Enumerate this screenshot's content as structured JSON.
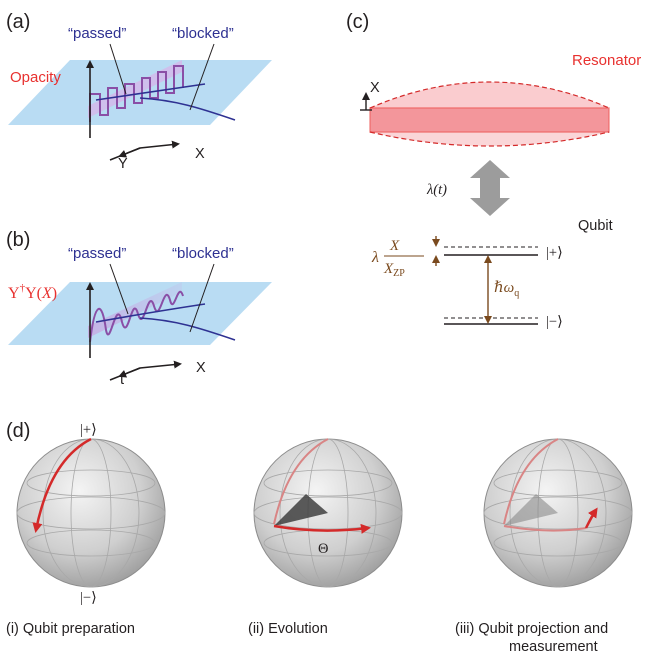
{
  "panel_a": {
    "label": "(a)",
    "passed": "“passed”",
    "blocked": "“blocked”",
    "opacity": "Opacity",
    "axis_y": "Y",
    "axis_x": "X"
  },
  "panel_b": {
    "label": "(b)",
    "passed": "“passed”",
    "blocked": "“blocked”",
    "ups_main": "Υ",
    "ups_dagger": "†",
    "ups_rest": "Υ(",
    "ups_x": "X",
    "ups_close": ")",
    "axis_t": "t",
    "axis_x": "X"
  },
  "panel_c": {
    "label": "(c)",
    "resonator": "Resonator",
    "axis_x": "X",
    "lambda_t": "λ(t)",
    "qubit": "Qubit",
    "lam": "λ",
    "frac_num": "X",
    "frac_den": "X",
    "frac_den_sub": "ZP",
    "hbar": "ℏω",
    "hbar_sub": "q",
    "ket_plus": "|+⟩",
    "ket_minus": "|−⟩"
  },
  "panel_d": {
    "label": "(d)",
    "ket_plus": "|+⟩",
    "ket_minus": "|−⟩",
    "theta": "Θ",
    "captions": {
      "i": "(i) Qubit preparation",
      "ii": "(ii) Evolution",
      "iii_line1": "(iii) Qubit projection and",
      "iii_line2": "measurement"
    }
  },
  "colors": {
    "plane": "#b9dcf3",
    "navy": "#2e3192",
    "violet": "#8a4fa6",
    "red": "#e8312f",
    "resonator_fill": "#f5a3a8",
    "brown": "#7a4a1e",
    "arrow_gray": "#9c9c9c"
  }
}
